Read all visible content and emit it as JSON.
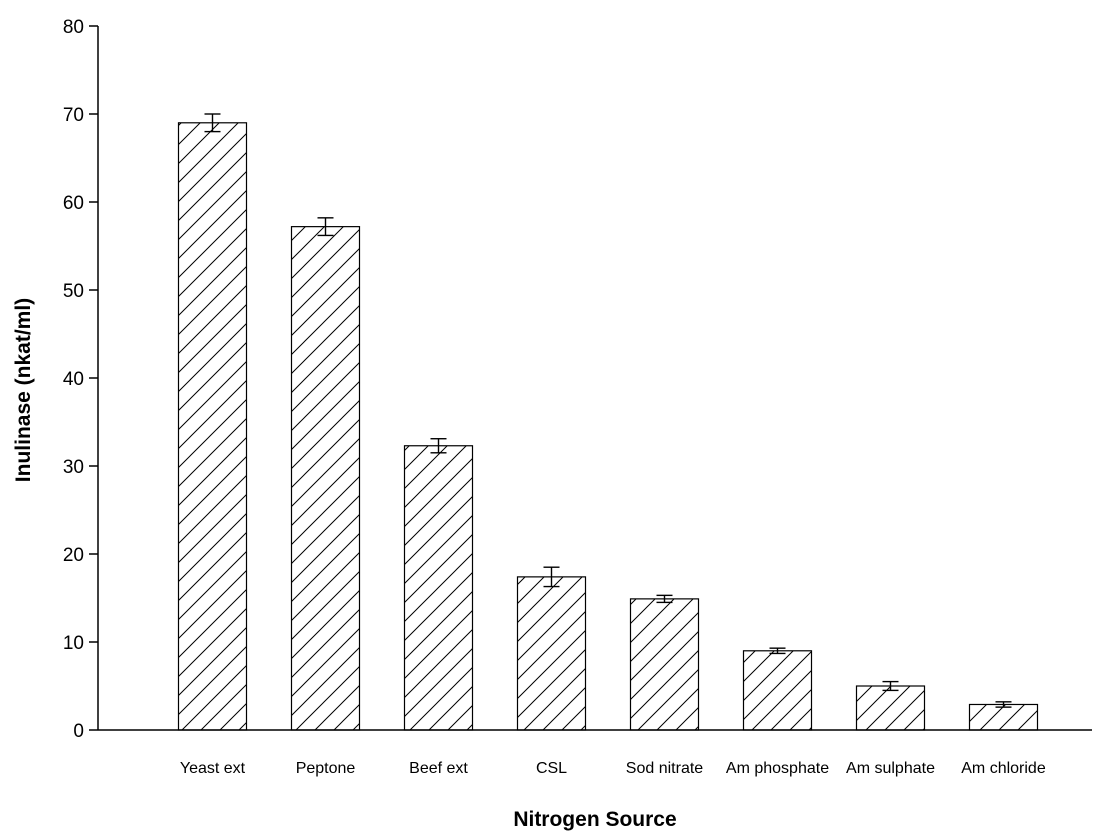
{
  "chart_data": {
    "type": "bar",
    "xlabel": "Nitrogen Source",
    "ylabel": "Inulinase (nkat/ml)",
    "ylim": [
      0,
      80
    ],
    "yticks": [
      0,
      10,
      20,
      30,
      40,
      50,
      60,
      70,
      80
    ],
    "grid": false,
    "bar_pattern": "diagonal-hatch",
    "bar_fill_color": "#ffffff",
    "bar_line_color": "#000000",
    "categories": [
      "Yeast ext",
      "Peptone",
      "Beef ext",
      "CSL",
      "Sod nitrate",
      "Am phosphate",
      "Am sulphate",
      "Am chloride"
    ],
    "values": [
      69.0,
      57.2,
      32.3,
      17.4,
      14.9,
      9.0,
      5.0,
      2.9
    ],
    "errors": [
      1.0,
      1.0,
      0.8,
      1.1,
      0.4,
      0.3,
      0.5,
      0.3
    ]
  }
}
